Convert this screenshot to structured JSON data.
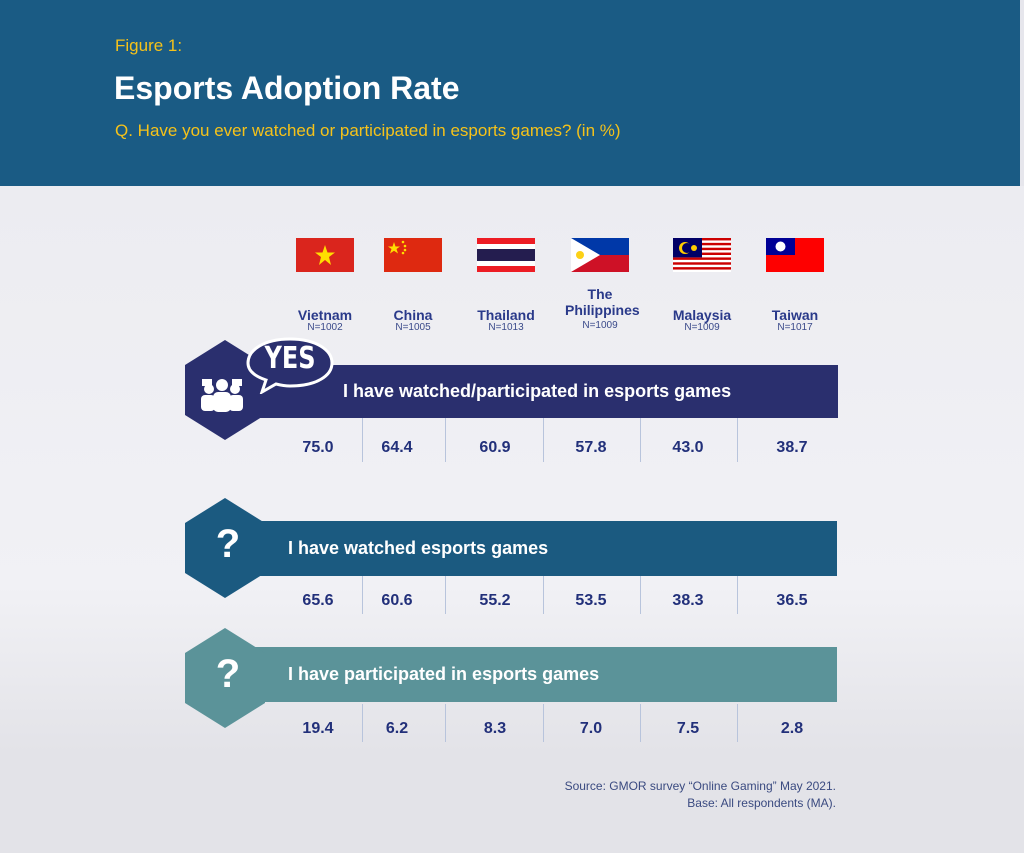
{
  "header": {
    "figure": "Figure 1:",
    "title": "Esports Adoption Rate",
    "question": "Q. Have you ever watched or participated in esports games?  (in %)"
  },
  "countries": [
    {
      "name": "Vietnam",
      "n": "N=1002",
      "flag": "vietnam-flag"
    },
    {
      "name": "China",
      "n": "N=1005",
      "flag": "china-flag"
    },
    {
      "name": "Thailand",
      "n": "N=1013",
      "flag": "thailand-flag"
    },
    {
      "name": "The Philippines",
      "n": "N=1009",
      "flag": "philippines-flag"
    },
    {
      "name": "Malaysia",
      "n": "N=1009",
      "flag": "malaysia-flag"
    },
    {
      "name": "Taiwan",
      "n": "N=1017",
      "flag": "taiwan-flag"
    }
  ],
  "badge_yes": "YES",
  "badge_question": "?",
  "colors": {
    "header": "#1a5b84",
    "accent": "#f5c21a",
    "band1": "#2a2f6e",
    "band2": "#1b5a80",
    "band3": "#5b9399",
    "values": "#22307a"
  },
  "chart_data": {
    "type": "table",
    "title": "Esports Adoption Rate",
    "categories": [
      "Vietnam",
      "China",
      "Thailand",
      "The Philippines",
      "Malaysia",
      "Taiwan"
    ],
    "series": [
      {
        "name": "I have watched/participated in esports games",
        "values": [
          "75.0",
          "64.4",
          "60.9",
          "57.8",
          "43.0",
          "38.7"
        ]
      },
      {
        "name": "I have watched esports games",
        "values": [
          "65.6",
          "60.6",
          "55.2",
          "53.5",
          "38.3",
          "36.5"
        ]
      },
      {
        "name": "I have participated in esports games",
        "values": [
          "19.4",
          "6.2",
          "8.3",
          "7.0",
          "7.5",
          "2.8"
        ]
      }
    ]
  },
  "footer": {
    "source": "Source: GMOR survey “Online Gaming” May 2021.",
    "base": "Base: All respondents (MA)."
  }
}
